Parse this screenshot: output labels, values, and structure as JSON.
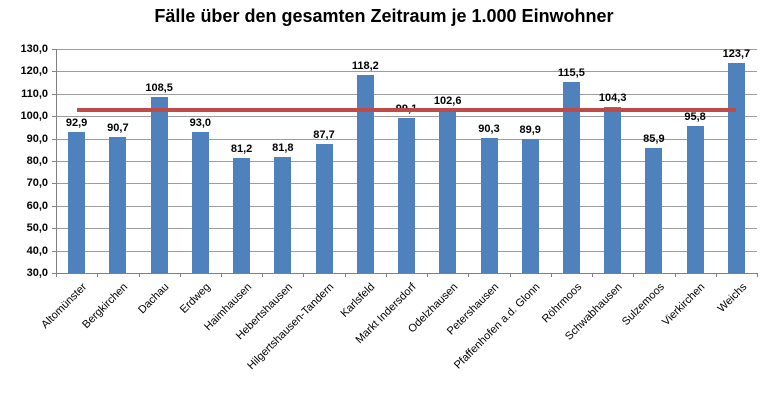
{
  "chart_data": {
    "type": "bar",
    "title": "Fälle über den gesamten Zeitraum je 1.000 Einwohner",
    "categories": [
      "Altomünster",
      "Bergkirchen",
      "Dachau",
      "Erdweg",
      "Haimhausen",
      "Hebertshausen",
      "Hilgertshausen-Tandern",
      "Karlsfeld",
      "Markt Indersdorf",
      "Odelzhausen",
      "Petershausen",
      "Pfaffenhofen a.d. Glonn",
      "Röhrmoos",
      "Schwabhausen",
      "Sulzemoos",
      "Vierkirchen",
      "Weichs"
    ],
    "values": [
      92.9,
      90.7,
      108.5,
      93.0,
      81.2,
      81.8,
      87.7,
      118.2,
      99.1,
      102.6,
      90.3,
      89.9,
      115.5,
      104.3,
      85.9,
      95.8,
      123.7
    ],
    "value_labels": [
      "92,9",
      "90,7",
      "108,5",
      "93,0",
      "81,2",
      "81,8",
      "87,7",
      "118,2",
      "99,1",
      "102,6",
      "90,3",
      "89,9",
      "115,5",
      "104,3",
      "85,9",
      "95,8",
      "123,7"
    ],
    "xlabel": "",
    "ylabel": "",
    "ylim": [
      30,
      130
    ],
    "ytick_step": 10,
    "ytick_labels": [
      "30,0",
      "40,0",
      "50,0",
      "60,0",
      "70,0",
      "80,0",
      "90,0",
      "100,0",
      "110,0",
      "120,0",
      "130,0"
    ],
    "grid": true,
    "legend_position": "none",
    "reference_line": {
      "value": 102.8,
      "label": ""
    },
    "colors": {
      "bar": "#4F81BD",
      "reference_line": "#BE4B48",
      "gridline": "#9C9C9C",
      "axis": "#808080",
      "text": "#000000",
      "background": "#FFFFFF"
    }
  }
}
